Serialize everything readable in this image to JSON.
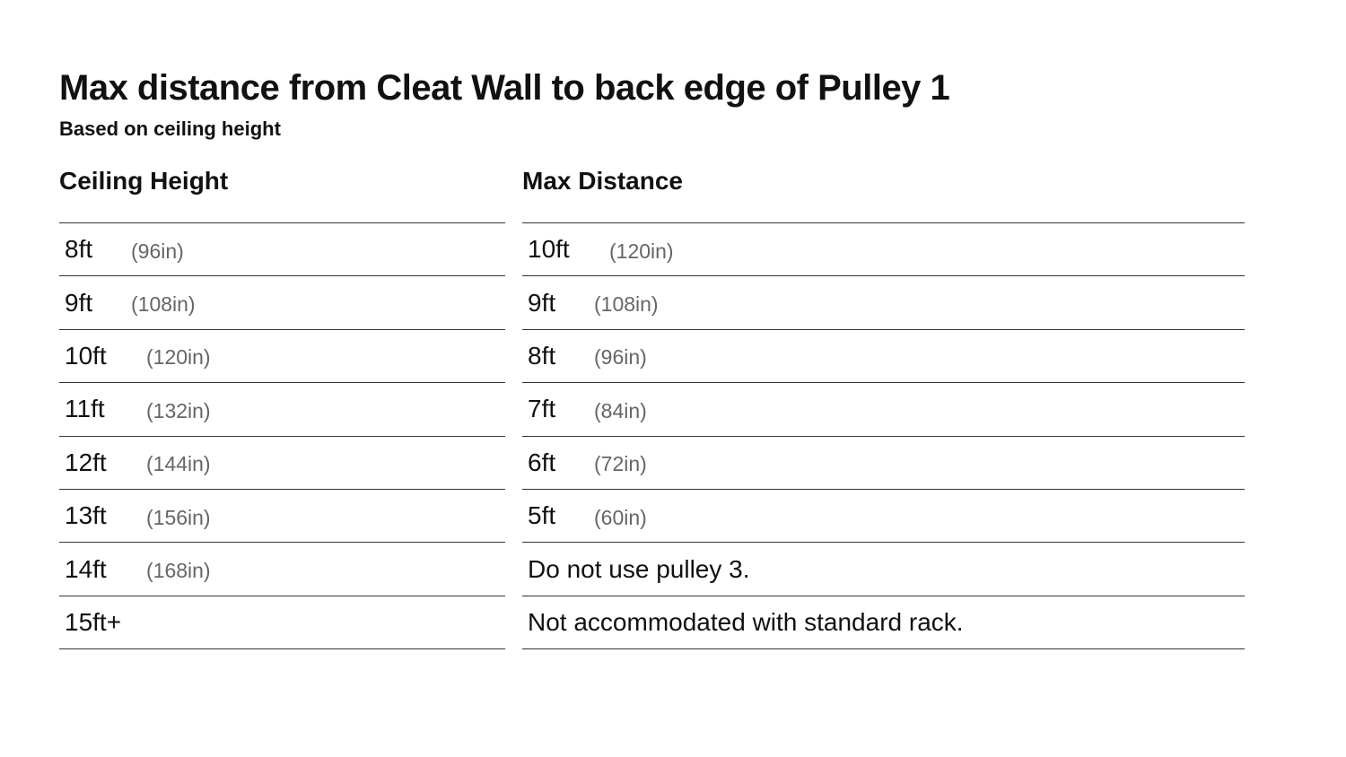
{
  "title": "Max distance from Cleat Wall to back edge of Pulley 1",
  "subtitle": "Based on ceiling height",
  "table": {
    "headers": {
      "ceiling": "Ceiling Height",
      "distance": "Max Distance"
    },
    "rows": [
      {
        "ceiling": "8ft",
        "ceiling_in": "(96in)",
        "distance": "10ft",
        "distance_in": "(120in)"
      },
      {
        "ceiling": "9ft",
        "ceiling_in": "(108in)",
        "distance": "9ft",
        "distance_in": "(108in)"
      },
      {
        "ceiling": "10ft",
        "ceiling_in": "(120in)",
        "distance": "8ft",
        "distance_in": "(96in)"
      },
      {
        "ceiling": "11ft",
        "ceiling_in": "(132in)",
        "distance": "7ft",
        "distance_in": "(84in)"
      },
      {
        "ceiling": "12ft",
        "ceiling_in": "(144in)",
        "distance": "6ft",
        "distance_in": "(72in)"
      },
      {
        "ceiling": "13ft",
        "ceiling_in": "(156in)",
        "distance": "5ft",
        "distance_in": "(60in)"
      },
      {
        "ceiling": "14ft",
        "ceiling_in": "(168in)",
        "distance_note": "Do not use pulley 3."
      },
      {
        "ceiling": "15ft+",
        "distance_note": "Not accommodated with standard rack."
      }
    ]
  },
  "colors": {
    "text": "#111111",
    "muted": "#666666",
    "rule": "#333333",
    "background": "#ffffff"
  }
}
